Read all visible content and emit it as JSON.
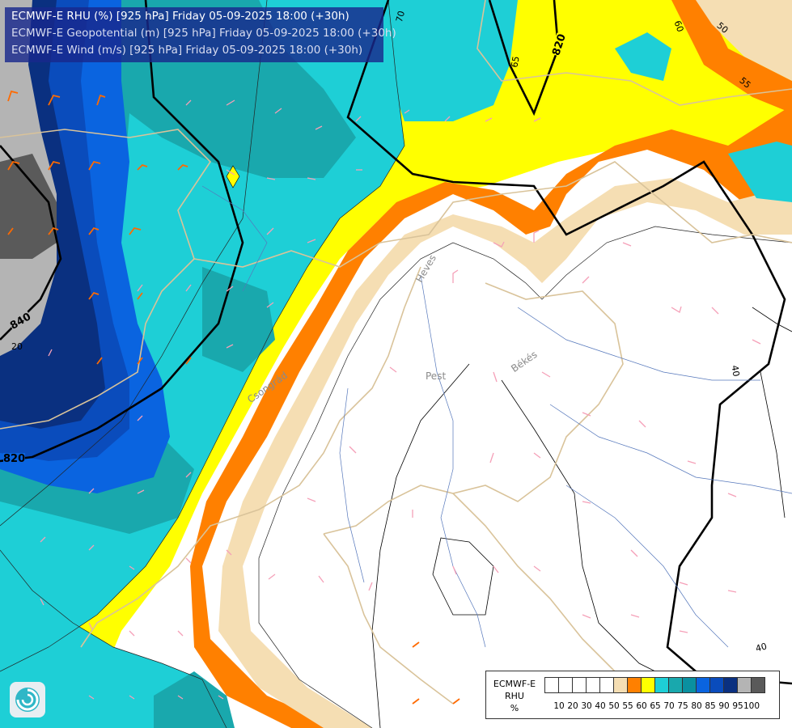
{
  "header": {
    "line1": "ECMWF-E RHU (%) [925 hPa] Friday 05-09-2025 18:00 (+30h)",
    "line2": "ECMWF-E Geopotential (m) [925 hPa] Friday 05-09-2025 18:00 (+30h)",
    "line3": "ECMWF-E Wind (m/s) [925 hPa] Friday 05-09-2025 18:00 (+30h)"
  },
  "legend": {
    "model": "ECMWF-E",
    "variable": "RHU",
    "unit": "%",
    "colors": [
      "#ffffff",
      "#ffffff",
      "#ffffff",
      "#ffffff",
      "#ffffff",
      "#f5deb3",
      "#ff8000",
      "#ffff00",
      "#1ecfd6",
      "#19a8ad",
      "#0a90a0",
      "#0a64e0",
      "#0a4cbc",
      "#0a3080",
      "#b4b4b4",
      "#5a5a5a"
    ],
    "ticks": [
      "10",
      "20",
      "30",
      "40",
      "50",
      "55",
      "60",
      "65",
      "70",
      "75",
      "80",
      "85",
      "90",
      "95",
      "100"
    ]
  },
  "map": {
    "contour_labels": [
      "820",
      "840",
      "70",
      "65",
      "60",
      "55",
      "50",
      "40",
      "40",
      "20",
      "820"
    ],
    "region_labels": [
      "Pest",
      "Békés",
      "Csongrád",
      "Heves"
    ],
    "colors": {
      "cyan": "#1ecfd6",
      "teal": "#19a8ad",
      "blue": "#0a64e0",
      "darkblue": "#0a3080",
      "yellow": "#ffff00",
      "orange": "#ff8000",
      "wheat": "#f5deb3",
      "gray": "#b4b4b4",
      "darkgray": "#5a5a5a"
    }
  }
}
